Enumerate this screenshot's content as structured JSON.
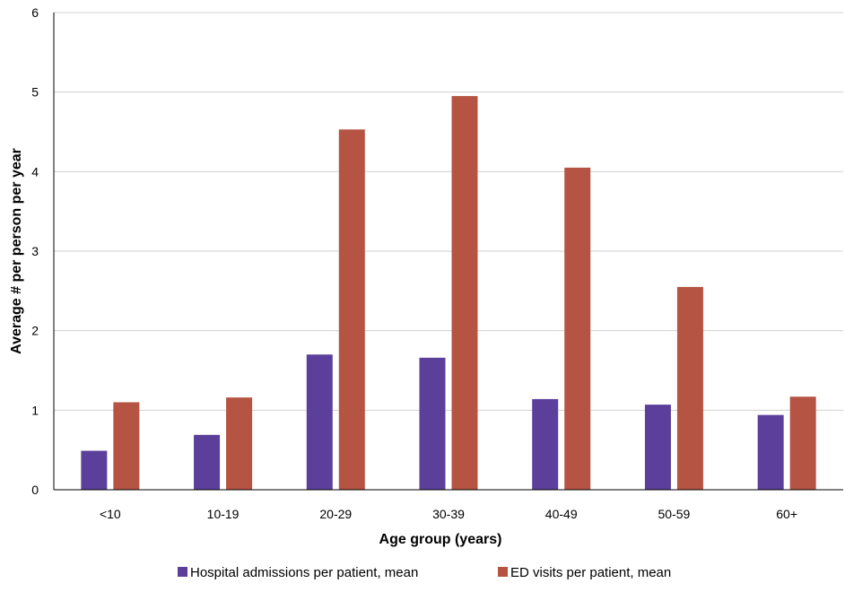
{
  "chart_data": {
    "type": "bar",
    "title": "",
    "xlabel": "Age group (years)",
    "ylabel": "Average # per person per year",
    "categories": [
      "<10",
      "10-19",
      "20-29",
      "30-39",
      "40-49",
      "50-59",
      "60+"
    ],
    "series": [
      {
        "name": "Hospital admissions per patient, mean",
        "color": "#5b3f9a",
        "values": [
          0.49,
          0.69,
          1.7,
          1.66,
          1.14,
          1.07,
          0.94
        ]
      },
      {
        "name": "ED visits per patient, mean",
        "color": "#b55442",
        "values": [
          1.1,
          1.16,
          4.53,
          4.95,
          4.05,
          2.55,
          1.17
        ]
      }
    ],
    "ylim": [
      0,
      6
    ],
    "yticks": [
      "0",
      "1",
      "2",
      "3",
      "4",
      "5",
      "6"
    ],
    "grid": true,
    "legend": "bottom"
  }
}
